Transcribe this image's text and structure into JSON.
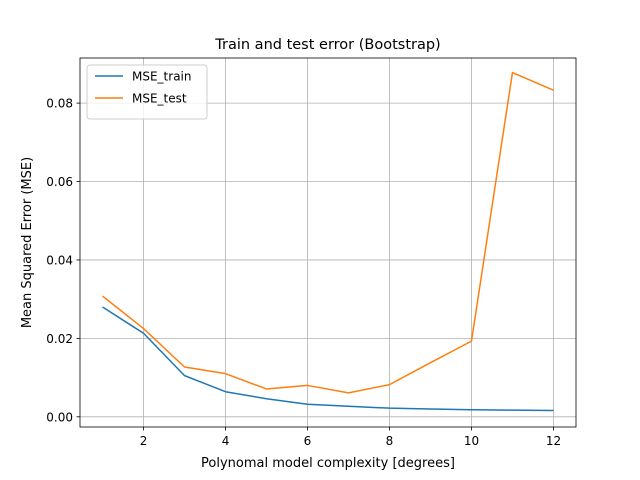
{
  "chart_data": {
    "type": "line",
    "title": "Train and test error (Bootstrap)",
    "xlabel": "Polynomal model complexity [degrees]",
    "ylabel": "Mean Squared Error (MSE)",
    "xlim": [
      0.45,
      12.55
    ],
    "ylim": [
      -0.0026,
      0.0915
    ],
    "x_ticks": [
      2,
      4,
      6,
      8,
      10,
      12
    ],
    "x_tick_labels": [
      "2",
      "4",
      "6",
      "8",
      "10",
      "12"
    ],
    "y_ticks": [
      0.0,
      0.02,
      0.04,
      0.06,
      0.08
    ],
    "y_tick_labels": [
      "0.00",
      "0.02",
      "0.04",
      "0.06",
      "0.08"
    ],
    "grid": true,
    "legend_position": "top-left",
    "x": [
      1,
      2,
      3,
      4,
      5,
      6,
      7,
      8,
      9,
      10,
      11,
      12
    ],
    "series": [
      {
        "name": "MSE_train",
        "color": "#1f77b4",
        "values": [
          0.028,
          0.0213,
          0.0105,
          0.0064,
          0.0046,
          0.0032,
          0.0027,
          0.0022,
          0.002,
          0.0018,
          0.0017,
          0.0016
        ]
      },
      {
        "name": "MSE_test",
        "color": "#ff7f0e",
        "values": [
          0.0308,
          0.0225,
          0.0127,
          0.011,
          0.0071,
          0.008,
          0.0061,
          0.0082,
          0.0138,
          0.0193,
          0.0878,
          0.0833
        ]
      }
    ]
  }
}
